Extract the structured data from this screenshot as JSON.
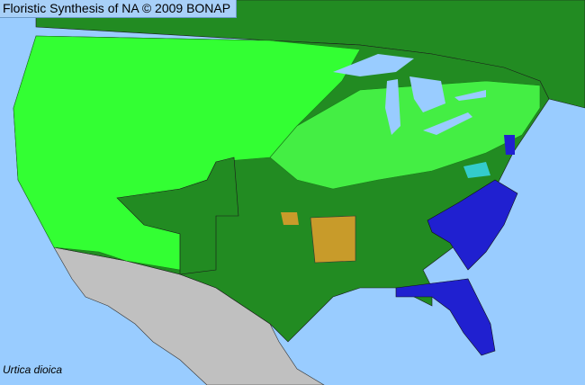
{
  "header": {
    "title": "Floristic Synthesis of NA © 2009 BONAP"
  },
  "map": {
    "species": "Urtica dioica",
    "colors": {
      "water": "#99ccff",
      "present_native": "#228b22",
      "present_county": "#33ff33",
      "rare": "#33cccc",
      "noxious_or_introduced": "#c89b2a",
      "absent_state": "#2020d0",
      "not_in_range": "#c0c0c0",
      "border": "#1a1a1a"
    }
  }
}
